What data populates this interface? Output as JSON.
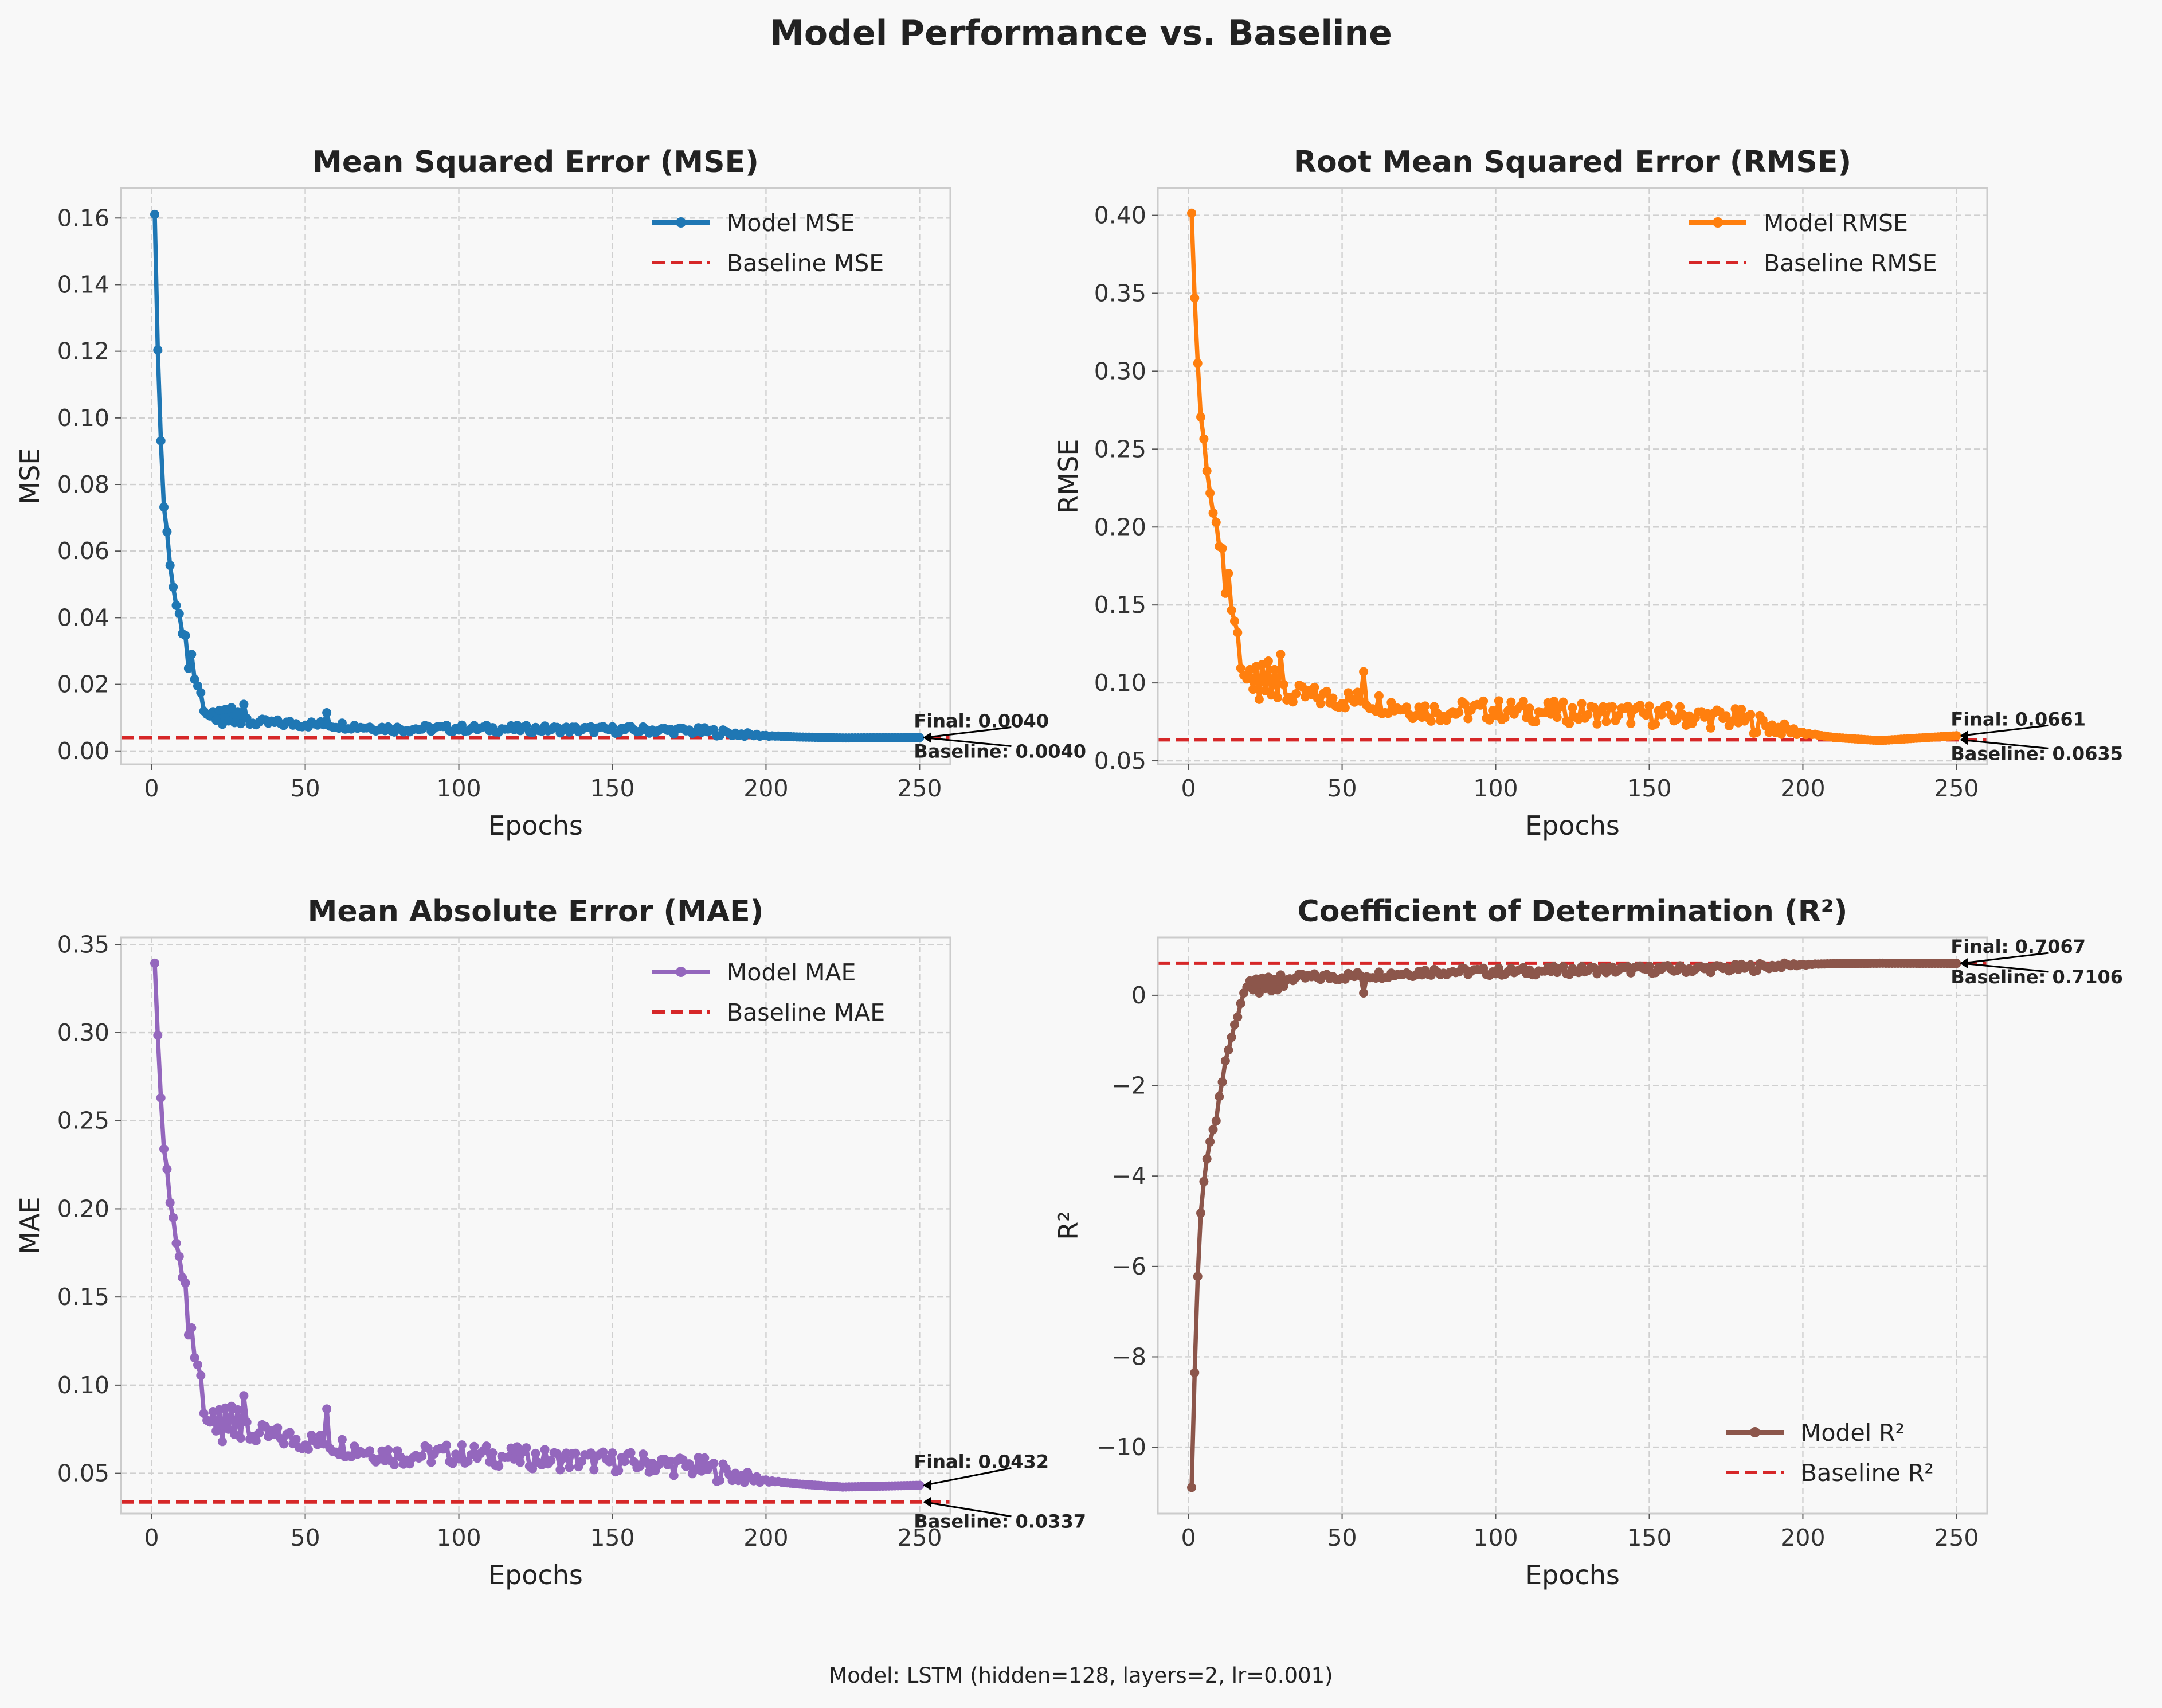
{
  "figure": {
    "title": "Model Performance vs. Baseline",
    "footer": "Model: LSTM (hidden=128, layers=2, lr=0.001)",
    "background": "#f8f8f8"
  },
  "chart_data": [
    {
      "type": "line",
      "title": "Mean Squared Error (MSE)",
      "xlabel": "Epochs",
      "ylabel": "MSE",
      "xlim": [
        -10,
        260
      ],
      "ylim": [
        -0.004,
        0.169
      ],
      "xticks": [
        0,
        50,
        100,
        150,
        200,
        250
      ],
      "yticks": [
        0.0,
        0.02,
        0.04,
        0.06,
        0.08,
        0.1,
        0.12,
        0.14,
        0.16
      ],
      "ytick_decimals": 2,
      "grid": true,
      "legend_position": "top-right",
      "color": "#1f77b4",
      "baseline_color": "#d62728",
      "series_name": "Model MSE",
      "baseline_name": "Baseline MSE",
      "baseline": 0.004,
      "final": 0.004,
      "final_label": "Final: 0.0040",
      "baseline_label": "Baseline: 0.0040",
      "epochs": 250,
      "early": [
        [
          1,
          0.1611
        ],
        [
          2,
          0.1204
        ],
        [
          3,
          0.0931
        ],
        [
          4,
          0.0732
        ],
        [
          5,
          0.0658
        ],
        [
          6,
          0.0557
        ],
        [
          7,
          0.0492
        ],
        [
          8,
          0.0437
        ],
        [
          9,
          0.0412
        ],
        [
          10,
          0.0352
        ],
        [
          11,
          0.0347
        ],
        [
          12,
          0.0248
        ],
        [
          13,
          0.029
        ],
        [
          14,
          0.0215
        ],
        [
          15,
          0.0195
        ],
        [
          16,
          0.0175
        ],
        [
          17,
          0.012
        ],
        [
          18,
          0.011
        ],
        [
          19,
          0.0105
        ],
        [
          20,
          0.0118
        ],
        [
          21,
          0.0092
        ],
        [
          22,
          0.0122
        ],
        [
          23,
          0.008
        ],
        [
          24,
          0.0125
        ],
        [
          25,
          0.009
        ],
        [
          26,
          0.013
        ],
        [
          27,
          0.0085
        ],
        [
          28,
          0.0118
        ],
        [
          29,
          0.0082
        ],
        [
          30,
          0.014
        ],
        [
          31,
          0.0098
        ]
      ],
      "plateaus": [
        [
          35,
          0.0085
        ],
        [
          60,
          0.0078
        ],
        [
          80,
          0.0066
        ],
        [
          100,
          0.0068
        ],
        [
          130,
          0.0065
        ],
        [
          160,
          0.0063
        ],
        [
          180,
          0.0059
        ],
        [
          195,
          0.0048
        ],
        [
          210,
          0.0042
        ],
        [
          225,
          0.0039
        ],
        [
          250,
          0.004
        ]
      ],
      "noise": 0.0011,
      "spikes": [
        [
          57,
          0.0115
        ]
      ]
    },
    {
      "type": "line",
      "title": "Root Mean Squared Error (RMSE)",
      "xlabel": "Epochs",
      "ylabel": "RMSE",
      "xlim": [
        -10,
        260
      ],
      "ylim": [
        0.0478,
        0.4175
      ],
      "xticks": [
        0,
        50,
        100,
        150,
        200,
        250
      ],
      "yticks": [
        0.05,
        0.1,
        0.15,
        0.2,
        0.25,
        0.3,
        0.35,
        0.4
      ],
      "ytick_decimals": 2,
      "grid": true,
      "legend_position": "top-right",
      "color": "#ff7f0e",
      "baseline_color": "#d62728",
      "series_name": "Model RMSE",
      "baseline_name": "Baseline RMSE",
      "baseline": 0.0635,
      "final": 0.0661,
      "final_label": "Final: 0.0661",
      "baseline_label": "Baseline: 0.0635",
      "epochs": 250,
      "early": [
        [
          1,
          0.4014
        ],
        [
          2,
          0.347
        ],
        [
          3,
          0.3051
        ],
        [
          4,
          0.2706
        ],
        [
          5,
          0.2565
        ],
        [
          6,
          0.236
        ],
        [
          7,
          0.2218
        ],
        [
          8,
          0.209
        ],
        [
          9,
          0.203
        ],
        [
          10,
          0.1876
        ],
        [
          11,
          0.1863
        ],
        [
          12,
          0.1575
        ],
        [
          13,
          0.1703
        ],
        [
          14,
          0.1466
        ],
        [
          15,
          0.1396
        ],
        [
          16,
          0.1323
        ],
        [
          17,
          0.1095
        ],
        [
          18,
          0.1049
        ],
        [
          19,
          0.1025
        ],
        [
          20,
          0.1086
        ],
        [
          21,
          0.0959
        ],
        [
          22,
          0.1105
        ],
        [
          23,
          0.0894
        ],
        [
          24,
          0.1118
        ],
        [
          25,
          0.0949
        ],
        [
          26,
          0.114
        ],
        [
          27,
          0.0922
        ],
        [
          28,
          0.1086
        ],
        [
          29,
          0.0906
        ],
        [
          30,
          0.1183
        ],
        [
          31,
          0.099
        ]
      ],
      "plateaus": [
        [
          35,
          0.092
        ],
        [
          60,
          0.088
        ],
        [
          80,
          0.0815
        ],
        [
          100,
          0.0825
        ],
        [
          130,
          0.0805
        ],
        [
          160,
          0.079
        ],
        [
          180,
          0.0765
        ],
        [
          195,
          0.0695
        ],
        [
          210,
          0.065
        ],
        [
          225,
          0.063
        ],
        [
          250,
          0.0661
        ]
      ],
      "noise": 0.007,
      "spikes": [
        [
          57,
          0.1072
        ]
      ]
    },
    {
      "type": "line",
      "title": "Mean Absolute Error (MAE)",
      "xlabel": "Epochs",
      "ylabel": "MAE",
      "xlim": [
        -10,
        260
      ],
      "ylim": [
        0.0271,
        0.354
      ],
      "xticks": [
        0,
        50,
        100,
        150,
        200,
        250
      ],
      "yticks": [
        0.05,
        0.1,
        0.15,
        0.2,
        0.25,
        0.3,
        0.35
      ],
      "ytick_decimals": 2,
      "grid": true,
      "legend_position": "top-right",
      "color": "#9467bd",
      "baseline_color": "#d62728",
      "series_name": "Model MAE",
      "baseline_name": "Baseline MAE",
      "baseline": 0.0337,
      "final": 0.0432,
      "final_label": "Final: 0.0432",
      "baseline_label": "Baseline: 0.0337",
      "epochs": 250,
      "early": [
        [
          1,
          0.3394
        ],
        [
          2,
          0.2985
        ],
        [
          3,
          0.263
        ],
        [
          4,
          0.234
        ],
        [
          5,
          0.2225
        ],
        [
          6,
          0.2035
        ],
        [
          7,
          0.195
        ],
        [
          8,
          0.1805
        ],
        [
          9,
          0.173
        ],
        [
          10,
          0.161
        ],
        [
          11,
          0.158
        ],
        [
          12,
          0.1285
        ],
        [
          13,
          0.1325
        ],
        [
          14,
          0.1155
        ],
        [
          15,
          0.1115
        ],
        [
          16,
          0.1055
        ],
        [
          17,
          0.084
        ],
        [
          18,
          0.08
        ],
        [
          19,
          0.079
        ],
        [
          20,
          0.085
        ],
        [
          21,
          0.074
        ],
        [
          22,
          0.086
        ],
        [
          23,
          0.068
        ],
        [
          24,
          0.087
        ],
        [
          25,
          0.075
        ],
        [
          26,
          0.088
        ],
        [
          27,
          0.072
        ],
        [
          28,
          0.086
        ],
        [
          29,
          0.07
        ],
        [
          30,
          0.094
        ],
        [
          31,
          0.079
        ]
      ],
      "plateaus": [
        [
          35,
          0.072
        ],
        [
          60,
          0.066
        ],
        [
          80,
          0.06
        ],
        [
          100,
          0.061
        ],
        [
          130,
          0.058
        ],
        [
          160,
          0.056
        ],
        [
          180,
          0.053
        ],
        [
          195,
          0.047
        ],
        [
          210,
          0.044
        ],
        [
          225,
          0.0422
        ],
        [
          250,
          0.0432
        ]
      ],
      "noise": 0.006,
      "spikes": [
        [
          57,
          0.0865
        ]
      ]
    },
    {
      "type": "line",
      "title": "Coefficient of Determination (R²)",
      "xlabel": "Epochs",
      "ylabel": "R²",
      "xlim": [
        -10,
        260
      ],
      "ylim": [
        -11.47,
        1.28
      ],
      "xticks": [
        0,
        50,
        100,
        150,
        200,
        250
      ],
      "yticks": [
        -10,
        -8,
        -6,
        -4,
        -2,
        0
      ],
      "ytick_decimals": 0,
      "grid": true,
      "legend_position": "bottom-right",
      "color": "#8c564b",
      "baseline_color": "#d62728",
      "series_name": "Model R²",
      "baseline_name": "Baseline R²",
      "baseline": 0.7106,
      "final": 0.7067,
      "final_label": "Final: 0.7067",
      "baseline_label": "Baseline: 0.7106",
      "epochs": 250,
      "early": [
        [
          1,
          -10.89
        ],
        [
          2,
          -8.35
        ],
        [
          3,
          -6.22
        ],
        [
          4,
          -4.82
        ],
        [
          5,
          -4.12
        ],
        [
          6,
          -3.62
        ],
        [
          7,
          -3.24
        ],
        [
          8,
          -2.97
        ],
        [
          9,
          -2.78
        ],
        [
          10,
          -2.24
        ],
        [
          11,
          -1.92
        ],
        [
          12,
          -1.45
        ],
        [
          13,
          -1.21
        ],
        [
          14,
          -0.93
        ],
        [
          15,
          -0.65
        ],
        [
          16,
          -0.48
        ],
        [
          17,
          -0.18
        ],
        [
          18,
          0.05
        ],
        [
          19,
          0.18
        ],
        [
          20,
          0.32
        ],
        [
          21,
          0.12
        ],
        [
          22,
          0.36
        ],
        [
          23,
          0.05
        ],
        [
          24,
          0.38
        ],
        [
          25,
          0.15
        ],
        [
          26,
          0.4
        ],
        [
          27,
          0.1
        ],
        [
          28,
          0.35
        ],
        [
          29,
          0.12
        ],
        [
          30,
          0.45
        ],
        [
          31,
          0.2
        ]
      ],
      "plateaus": [
        [
          35,
          0.38
        ],
        [
          60,
          0.45
        ],
        [
          80,
          0.53
        ],
        [
          100,
          0.52
        ],
        [
          130,
          0.56
        ],
        [
          160,
          0.58
        ],
        [
          180,
          0.6
        ],
        [
          195,
          0.67
        ],
        [
          210,
          0.7
        ],
        [
          225,
          0.71
        ],
        [
          250,
          0.7067
        ]
      ],
      "noise": 0.09,
      "spikes": [
        [
          57,
          0.05
        ]
      ]
    }
  ]
}
